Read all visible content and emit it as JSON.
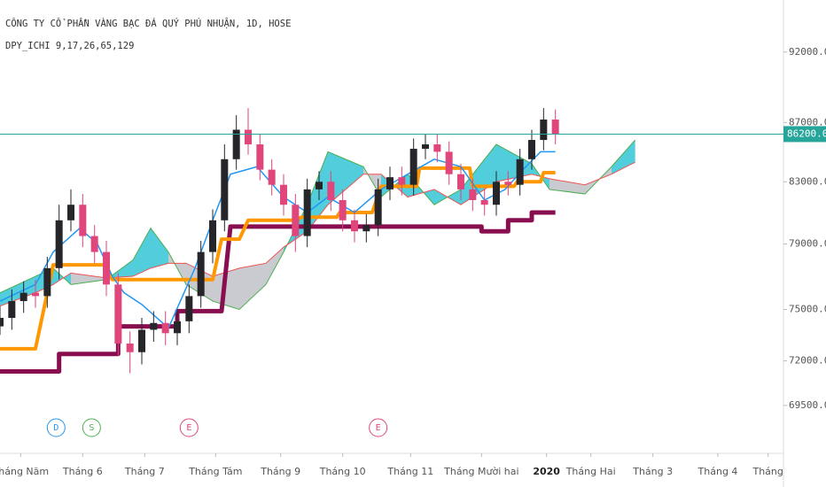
{
  "chart_data": {
    "type": "candlestick",
    "title": "CÔNG TY CỔ PHẦN VÀNG BẠC ĐÁ QUÝ PHÚ NHUẬN, 1D, HOSE",
    "subtitle": "DPY_ICHI 9,17,26,65,129",
    "log_scale": true,
    "up_color": "#26262a",
    "down_color": "#e0457b",
    "x": [
      0,
      4,
      8,
      12,
      16,
      20,
      24,
      28,
      32,
      36,
      40,
      44,
      48,
      52,
      56,
      60,
      64,
      68,
      72,
      76,
      80,
      84,
      88,
      92,
      96,
      100,
      104,
      108,
      112,
      116,
      120,
      124,
      128,
      132,
      136,
      140,
      144,
      148,
      152,
      156,
      160,
      164,
      168,
      172,
      176,
      180,
      184,
      188
    ],
    "open": [
      74000,
      74500,
      75500,
      76000,
      75800,
      77500,
      80500,
      81500,
      79500,
      78500,
      76500,
      73000,
      72500,
      73800,
      74200,
      73600,
      74300,
      75800,
      78500,
      80500,
      84500,
      86500,
      85500,
      83800,
      82800,
      81500,
      79500,
      82500,
      83000,
      81800,
      80500,
      79800,
      80200,
      82500,
      83300,
      82800,
      85200,
      85500,
      85000,
      83500,
      82500,
      81800,
      81500,
      83000,
      82800,
      84500,
      85800,
      87200
    ],
    "high": [
      75200,
      76200,
      76700,
      76800,
      78200,
      81500,
      82500,
      82200,
      80200,
      79200,
      77200,
      73700,
      74500,
      74900,
      74900,
      75000,
      76500,
      79200,
      81200,
      85500,
      87500,
      88000,
      86200,
      84500,
      83500,
      82200,
      83200,
      83700,
      83700,
      82500,
      81200,
      80900,
      83200,
      84000,
      84000,
      85900,
      86200,
      86200,
      85700,
      84200,
      83200,
      82500,
      83700,
      83700,
      85200,
      86500,
      88000,
      87900
    ],
    "low": [
      73500,
      73800,
      74800,
      75100,
      75100,
      76800,
      79800,
      78800,
      77800,
      75800,
      72300,
      71300,
      71800,
      73100,
      72900,
      72900,
      73600,
      75100,
      77800,
      79800,
      83800,
      84800,
      83100,
      82100,
      80800,
      78500,
      78800,
      81800,
      81100,
      79800,
      79100,
      79100,
      79500,
      81800,
      82100,
      82100,
      84500,
      84300,
      82800,
      81800,
      81100,
      80800,
      80800,
      82100,
      82100,
      83800,
      85100,
      85500
    ],
    "close": [
      74500,
      75500,
      76000,
      75800,
      77500,
      80500,
      81500,
      79500,
      78500,
      76500,
      73000,
      72500,
      73800,
      74200,
      73600,
      74300,
      75800,
      78500,
      80500,
      84500,
      86500,
      85500,
      83800,
      82800,
      81500,
      79500,
      82500,
      83000,
      81800,
      80500,
      79800,
      80200,
      82500,
      83300,
      82800,
      85200,
      85500,
      85000,
      83500,
      82500,
      81800,
      81500,
      83000,
      82800,
      84500,
      85800,
      87200,
      86200
    ],
    "lines": [
      {
        "color": "#880e4f",
        "width": 5,
        "x": [
          0,
          20,
          20,
          40,
          40,
          60,
          60,
          75,
          78,
          163,
          163,
          172,
          172,
          180,
          180,
          188
        ],
        "values": [
          71400,
          71400,
          72400,
          72400,
          74000,
          74000,
          74900,
          74900,
          80100,
          80100,
          79800,
          79800,
          80500,
          80500,
          81000,
          81000
        ]
      },
      {
        "color": "#ff9800",
        "width": 4,
        "x": [
          0,
          12,
          18,
          36,
          38,
          72,
          75,
          81,
          84,
          100,
          102,
          114,
          115,
          126,
          129,
          141,
          142,
          159,
          160,
          174,
          175,
          183,
          184,
          188
        ],
        "values": [
          72700,
          72700,
          77700,
          77700,
          76800,
          76800,
          79300,
          79300,
          80500,
          80500,
          80700,
          80700,
          81000,
          81000,
          82700,
          82700,
          83900,
          83900,
          82700,
          82700,
          83000,
          83000,
          83600,
          83600
        ]
      },
      {
        "color": "#2196f3",
        "width": 1.5,
        "x": [
          0,
          12,
          18,
          27,
          33,
          38,
          42,
          48,
          57,
          66,
          72,
          78,
          87,
          96,
          104,
          111,
          120,
          129,
          138,
          147,
          156,
          164,
          171,
          177,
          183,
          188
        ],
        "values": [
          75500,
          76500,
          78500,
          80000,
          79000,
          77000,
          76000,
          75300,
          73900,
          77500,
          80500,
          83500,
          84000,
          82000,
          81000,
          82000,
          81000,
          82500,
          83500,
          84500,
          84000,
          81800,
          82500,
          83800,
          85000,
          85000
        ]
      }
    ],
    "cloud": {
      "up_color": "#3ec8d8",
      "down_color": "#c4c4cc",
      "a_color": "#4caf50",
      "b_color": "#ef5350",
      "x": [
        0,
        12,
        18,
        24,
        36,
        45,
        51,
        57,
        63,
        72,
        81,
        90,
        96,
        104,
        111,
        123,
        129,
        138,
        147,
        156,
        168,
        180,
        186,
        198,
        207,
        215
      ],
      "a": [
        76000,
        77000,
        77500,
        76500,
        76800,
        78000,
        80000,
        78500,
        76500,
        75500,
        75000,
        76500,
        78500,
        81500,
        85000,
        84000,
        82000,
        83500,
        81500,
        82500,
        85500,
        84200,
        82500,
        82200,
        84000,
        85800
      ],
      "b": [
        75200,
        76000,
        76500,
        77200,
        76900,
        77000,
        77500,
        77800,
        77800,
        77000,
        77500,
        77800,
        78800,
        79800,
        81500,
        83500,
        83500,
        82000,
        82500,
        81500,
        83000,
        83500,
        83200,
        82800,
        83500,
        84300
      ]
    },
    "last_price": {
      "value": 86200,
      "label": "86200.0",
      "color": "#26a69a"
    },
    "events": [
      {
        "x": 19,
        "label": "D",
        "color": "#2196f3"
      },
      {
        "x": 31,
        "label": "S",
        "color": "#4caf50"
      },
      {
        "x": 64,
        "label": "E",
        "color": "#e0457b"
      },
      {
        "x": 128,
        "label": "E",
        "color": "#e0457b"
      }
    ],
    "xlim": [
      0,
      264
    ],
    "xticks": [
      {
        "value": 7,
        "label": "Tháng Năm"
      },
      {
        "value": 28,
        "label": "Tháng 6"
      },
      {
        "value": 49,
        "label": "Tháng 7"
      },
      {
        "value": 73,
        "label": "Tháng Tám"
      },
      {
        "value": 95,
        "label": "Tháng 9"
      },
      {
        "value": 116,
        "label": "Tháng 10"
      },
      {
        "value": 139,
        "label": "Tháng 11"
      },
      {
        "value": 163,
        "label": "Tháng Mười hai"
      },
      {
        "value": 185,
        "label": "2020"
      },
      {
        "value": 200,
        "label": "Tháng Hai"
      },
      {
        "value": 221,
        "label": "Tháng 3"
      },
      {
        "value": 243,
        "label": "Tháng 4"
      },
      {
        "value": 260,
        "label": "Tháng"
      }
    ],
    "ylim": [
      67000,
      95880
    ],
    "yticks": [
      {
        "value": 69500,
        "label": "69500.0"
      },
      {
        "value": 72000,
        "label": "72000.0"
      },
      {
        "value": 75000,
        "label": "75000.0"
      },
      {
        "value": 79000,
        "label": "79000.0"
      },
      {
        "value": 83000,
        "label": "83000.0"
      },
      {
        "value": 87000,
        "label": "87000.0"
      },
      {
        "value": 92000,
        "label": "92000.0"
      }
    ]
  }
}
